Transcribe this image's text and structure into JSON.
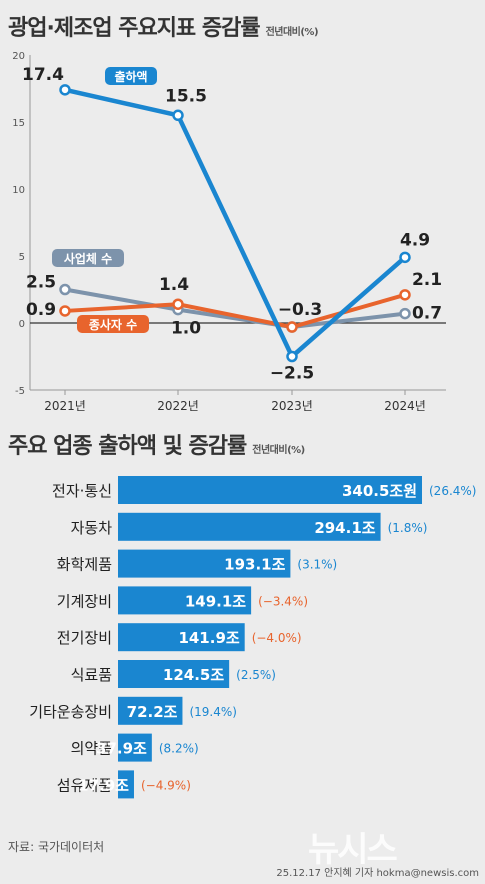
{
  "chart_title": "광업·제조업 주요지표 증감률",
  "chart_unit": "전년대비(%)",
  "bar_title": "주요 업종 출하액 및 증감률",
  "bar_unit": "전년대비(%)",
  "source": "자료: 국가데이터처",
  "credit": "25.12.17 안지혜 기자  hokma@newsis.com",
  "logo": "뉴시스",
  "colors": {
    "shipment": "#1a86d0",
    "business": "#7d93ab",
    "employee": "#e8642d",
    "bar": "#1a86d0",
    "negative": "#e8642d",
    "positive": "#1a86d0"
  },
  "chart_data": [
    {
      "type": "line",
      "title": "광업·제조업 주요지표 증감률",
      "x": [
        "2021년",
        "2022년",
        "2023년",
        "2024년"
      ],
      "ylim": [
        -5,
        20
      ],
      "yticks": [
        "20",
        "15",
        "10",
        "5",
        "0",
        "-5"
      ],
      "series": [
        {
          "name": "출하액",
          "values": [
            17.4,
            15.5,
            -2.5,
            4.9
          ],
          "labels": [
            "17.4",
            "15.5",
            "−2.5",
            "4.9"
          ]
        },
        {
          "name": "사업체 수",
          "values": [
            2.5,
            1.0,
            -0.3,
            0.7
          ],
          "labels": [
            "2.5",
            "1.0",
            "",
            "0.7"
          ]
        },
        {
          "name": "종사자 수",
          "values": [
            0.9,
            1.4,
            -0.3,
            2.1
          ],
          "labels": [
            "0.9",
            "1.4",
            "−0.3",
            "2.1"
          ]
        }
      ]
    },
    {
      "type": "bar",
      "title": "주요 업종 출하액 및 증감률",
      "categories": [
        "전자·통신",
        "자동차",
        "화학제품",
        "기계장비",
        "전기장비",
        "식료품",
        "기타운송장비",
        "의약품",
        "섬유제품"
      ],
      "values": [
        340.5,
        294.1,
        193.1,
        149.1,
        141.9,
        124.5,
        72.2,
        37.9,
        17.9
      ],
      "value_labels": [
        "340.5조원",
        "294.1조",
        "193.1조",
        "149.1조",
        "141.9조",
        "124.5조",
        "72.2조",
        "37.9조",
        "17.9조"
      ],
      "changes": [
        26.4,
        1.8,
        3.1,
        -3.4,
        -4.0,
        2.5,
        19.4,
        8.2,
        -4.9
      ],
      "change_labels": [
        "(26.4%)",
        "(1.8%)",
        "(3.1%)",
        "(−3.4%)",
        "(−4.0%)",
        "(2.5%)",
        "(19.4%)",
        "(8.2%)",
        "(−4.9%)"
      ],
      "xlim": [
        0,
        340.5
      ]
    }
  ]
}
